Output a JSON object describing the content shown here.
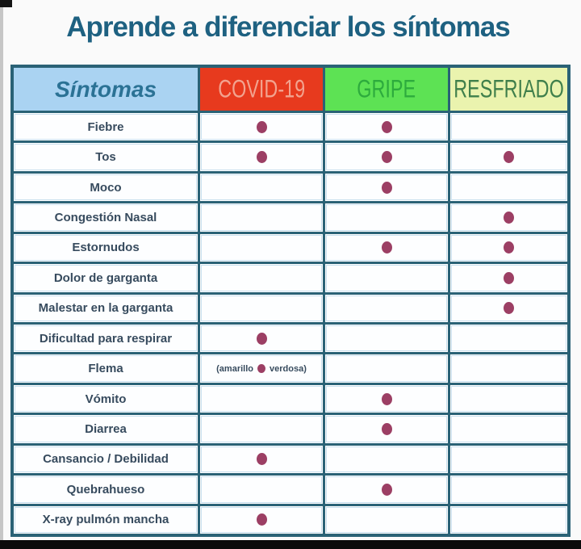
{
  "title": "Aprende a diferenciar los síntomas",
  "chart_data": {
    "type": "table",
    "title": "Aprende a diferenciar los síntomas",
    "columns": [
      "Síntomas",
      "COVID-19",
      "GRIPE",
      "RESFRIADO"
    ],
    "rows": [
      {
        "label": "Fiebre",
        "covid": "dot",
        "gripe": "dot",
        "resfriado": ""
      },
      {
        "label": "Tos",
        "covid": "dot",
        "gripe": "dot",
        "resfriado": "dot"
      },
      {
        "label": "Moco",
        "covid": "",
        "gripe": "dot",
        "resfriado": ""
      },
      {
        "label": "Congestión Nasal",
        "covid": "",
        "gripe": "",
        "resfriado": "dot"
      },
      {
        "label": "Estornudos",
        "covid": "",
        "gripe": "dot",
        "resfriado": "dot"
      },
      {
        "label": "Dolor de garganta",
        "covid": "",
        "gripe": "",
        "resfriado": "dot"
      },
      {
        "label": "Malestar en la garganta",
        "covid": "",
        "gripe": "",
        "resfriado": "dot"
      },
      {
        "label": "Dificultad para respirar",
        "covid": "dot",
        "gripe": "",
        "resfriado": ""
      },
      {
        "label": "Flema",
        "covid": "note",
        "gripe": "",
        "resfriado": ""
      },
      {
        "label": "Vómito",
        "covid": "",
        "gripe": "dot",
        "resfriado": ""
      },
      {
        "label": "Diarrea",
        "covid": "",
        "gripe": "dot",
        "resfriado": ""
      },
      {
        "label": "Cansancio / Debilidad",
        "covid": "dot",
        "gripe": "",
        "resfriado": ""
      },
      {
        "label": "Quebrahueso",
        "covid": "",
        "gripe": "dot",
        "resfriado": ""
      },
      {
        "label": "X-ray pulmón mancha",
        "covid": "dot",
        "gripe": "",
        "resfriado": ""
      }
    ],
    "note_text": {
      "before": "(amarillo",
      "after": "verdosa)"
    }
  },
  "colors": {
    "title": "#1e6181",
    "grid_line": "#2a6276",
    "sintomas_bg": "#aad3f2",
    "sintomas_text": "#2b7295",
    "covid_bg": "#e73a1e",
    "covid_text": "#f2a38f",
    "gripe_bg": "#5de254",
    "gripe_text": "#2dab3d",
    "resfriado_bg": "#eaf3ae",
    "resfriado_text": "#3f7f4b",
    "dot": "#9c3f64",
    "row_text": "#374b5e"
  }
}
